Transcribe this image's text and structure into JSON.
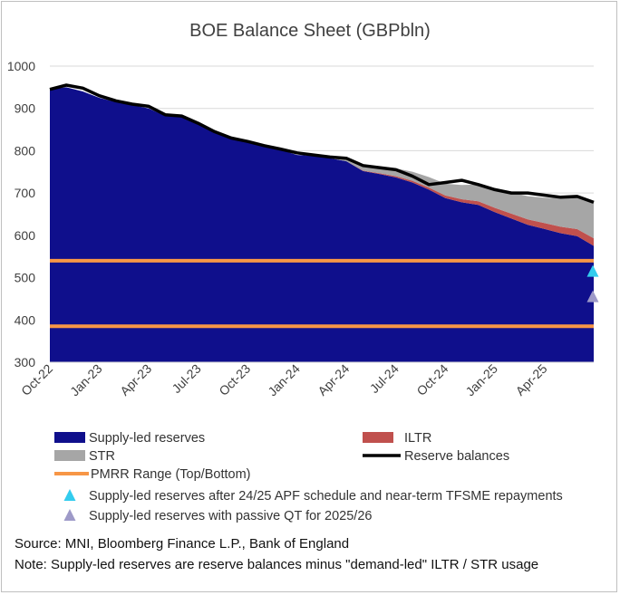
{
  "chart_data": {
    "type": "area",
    "title": "BOE Balance Sheet (GBPbln)",
    "x_ticks": [
      "Oct-22",
      "Jan-23",
      "Apr-23",
      "Jul-23",
      "Oct-23",
      "Jan-24",
      "Apr-24",
      "Jul-24",
      "Oct-24",
      "Jan-25",
      "Apr-25"
    ],
    "x_start": "2022-10",
    "x_end": "2025-07",
    "ylim": [
      300,
      1000
    ],
    "y_ticks": [
      300,
      400,
      500,
      600,
      700,
      800,
      900,
      1000
    ],
    "grid": "horizontal",
    "legend_position": "bottom",
    "series": [
      {
        "name": "Supply-led reserves",
        "color": "#0f0f8c",
        "x": [
          "2022-10",
          "2022-11",
          "2022-12",
          "2023-01",
          "2023-02",
          "2023-03",
          "2023-04",
          "2023-05",
          "2023-06",
          "2023-07",
          "2023-08",
          "2023-09",
          "2023-10",
          "2023-11",
          "2023-12",
          "2024-01",
          "2024-02",
          "2024-03",
          "2024-04",
          "2024-05",
          "2024-06",
          "2024-07",
          "2024-08",
          "2024-09",
          "2024-10",
          "2024-11",
          "2024-12",
          "2025-01",
          "2025-02",
          "2025-03",
          "2025-04",
          "2025-05",
          "2025-06",
          "2025-07"
        ],
        "values": [
          945,
          950,
          940,
          925,
          915,
          908,
          900,
          882,
          880,
          862,
          843,
          828,
          820,
          810,
          802,
          790,
          788,
          782,
          775,
          752,
          745,
          737,
          725,
          708,
          688,
          678,
          672,
          655,
          640,
          625,
          615,
          605,
          598,
          575
        ]
      },
      {
        "name": "ILTR",
        "color": "#c0504d",
        "x": [
          "2022-10",
          "2023-01",
          "2023-04",
          "2023-07",
          "2023-10",
          "2024-01",
          "2024-04",
          "2024-07",
          "2024-10",
          "2025-01",
          "2025-04",
          "2025-07"
        ],
        "values": [
          0,
          0,
          0,
          0,
          0,
          0,
          0,
          3,
          6,
          10,
          14,
          18
        ]
      },
      {
        "name": "STR",
        "color": "#a6a6a6",
        "x": [
          "2022-10",
          "2023-01",
          "2023-04",
          "2023-07",
          "2023-10",
          "2024-01",
          "2024-04",
          "2024-07",
          "2024-10",
          "2025-01",
          "2025-04",
          "2025-07"
        ],
        "values": [
          0,
          0,
          0,
          0,
          0,
          0,
          5,
          18,
          28,
          45,
          60,
          82
        ]
      },
      {
        "name": "Reserve balances",
        "color": "#000000",
        "x": [
          "2022-10",
          "2022-11",
          "2022-12",
          "2023-01",
          "2023-02",
          "2023-03",
          "2023-04",
          "2023-05",
          "2023-06",
          "2023-07",
          "2023-08",
          "2023-09",
          "2023-10",
          "2023-11",
          "2023-12",
          "2024-01",
          "2024-02",
          "2024-03",
          "2024-04",
          "2024-05",
          "2024-06",
          "2024-07",
          "2024-08",
          "2024-09",
          "2024-10",
          "2024-11",
          "2024-12",
          "2025-01",
          "2025-02",
          "2025-03",
          "2025-04",
          "2025-05",
          "2025-06",
          "2025-07"
        ],
        "values": [
          945,
          955,
          948,
          930,
          918,
          910,
          905,
          885,
          882,
          865,
          845,
          830,
          822,
          812,
          804,
          795,
          790,
          785,
          782,
          765,
          760,
          755,
          740,
          720,
          725,
          730,
          720,
          708,
          700,
          700,
          695,
          690,
          692,
          678
        ]
      },
      {
        "name": "PMRR Range (Top/Bottom)",
        "color": "#f79646",
        "values": [
          540,
          385
        ]
      },
      {
        "name": "Supply-led reserves after 24/25 APF schedule and near-term TFSME repayments",
        "color": "#33ccee",
        "x": [
          "2025-07"
        ],
        "values": [
          515
        ]
      },
      {
        "name": "Supply-led reserves with passive QT for 2025/26",
        "color": "#9e9ac8",
        "x": [
          "2025-07"
        ],
        "values": [
          455
        ]
      }
    ]
  },
  "footer": {
    "source": "Source: MNI, Bloomberg Finance L.P., Bank of England",
    "note": "Note: Supply-led reserves are reserve balances minus \"demand-led\" ILTR / STR usage"
  }
}
